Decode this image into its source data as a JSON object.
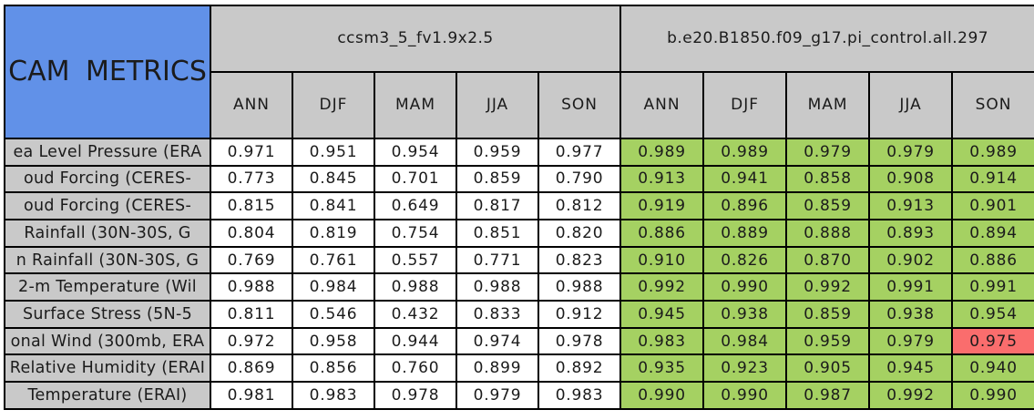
{
  "colors": {
    "title_bg": "#6191e8",
    "header_bg": "#c9c9c9",
    "label_bg": "#c9c9c9",
    "group1_cell_bg": "#ffffff",
    "group2_cell_bg": "#a5d162",
    "highlight_cell_bg": "#fa6d6d",
    "border": "#000000",
    "text": "#1b1b1b"
  },
  "chart_data": {
    "type": "table",
    "title": "CAM METRICS",
    "column_groups": [
      {
        "label": "ccsm3_5_fv1.9x2.5",
        "columns": [
          "ANN",
          "DJF",
          "MAM",
          "JJA",
          "SON"
        ]
      },
      {
        "label": "b.e20.B1850.f09_g17.pi_control.all.297",
        "columns": [
          "ANN",
          "DJF",
          "MAM",
          "JJA",
          "SON"
        ]
      }
    ],
    "rows": [
      {
        "label": "ea Level Pressure (ERA",
        "group1": [
          "0.971",
          "0.951",
          "0.954",
          "0.959",
          "0.977"
        ],
        "group2": [
          "0.989",
          "0.989",
          "0.979",
          "0.979",
          "0.989"
        ]
      },
      {
        "label": "oud Forcing (CERES-",
        "group1": [
          "0.773",
          "0.845",
          "0.701",
          "0.859",
          "0.790"
        ],
        "group2": [
          "0.913",
          "0.941",
          "0.858",
          "0.908",
          "0.914"
        ]
      },
      {
        "label": "oud Forcing (CERES-",
        "group1": [
          "0.815",
          "0.841",
          "0.649",
          "0.817",
          "0.812"
        ],
        "group2": [
          "0.919",
          "0.896",
          "0.859",
          "0.913",
          "0.901"
        ]
      },
      {
        "label": "Rainfall (30N-30S, G",
        "group1": [
          "0.804",
          "0.819",
          "0.754",
          "0.851",
          "0.820"
        ],
        "group2": [
          "0.886",
          "0.889",
          "0.888",
          "0.893",
          "0.894"
        ]
      },
      {
        "label": "n Rainfall (30N-30S, G",
        "group1": [
          "0.769",
          "0.761",
          "0.557",
          "0.771",
          "0.823"
        ],
        "group2": [
          "0.910",
          "0.826",
          "0.870",
          "0.902",
          "0.886"
        ]
      },
      {
        "label": "2-m Temperature (Wil",
        "group1": [
          "0.988",
          "0.984",
          "0.988",
          "0.988",
          "0.988"
        ],
        "group2": [
          "0.992",
          "0.990",
          "0.992",
          "0.991",
          "0.991"
        ]
      },
      {
        "label": "Surface Stress (5N-5",
        "group1": [
          "0.811",
          "0.546",
          "0.432",
          "0.833",
          "0.912"
        ],
        "group2": [
          "0.945",
          "0.938",
          "0.859",
          "0.938",
          "0.954"
        ]
      },
      {
        "label": "onal Wind (300mb, ERA",
        "group1": [
          "0.972",
          "0.958",
          "0.944",
          "0.974",
          "0.978"
        ],
        "group2": [
          "0.983",
          "0.984",
          "0.959",
          "0.979",
          "0.975"
        ],
        "highlight": {
          "group": 2,
          "col": 4
        }
      },
      {
        "label": "Relative Humidity (ERAI",
        "group1": [
          "0.869",
          "0.856",
          "0.760",
          "0.899",
          "0.892"
        ],
        "group2": [
          "0.935",
          "0.923",
          "0.905",
          "0.945",
          "0.940"
        ]
      },
      {
        "label": "Temperature (ERAI)",
        "group1": [
          "0.981",
          "0.983",
          "0.978",
          "0.979",
          "0.983"
        ],
        "group2": [
          "0.990",
          "0.990",
          "0.987",
          "0.992",
          "0.990"
        ]
      }
    ],
    "highlighted_cells": [
      {
        "row_label": "onal Wind (300mb, ERA",
        "group_label": "b.e20.B1850.f09_g17.pi_control.all.297",
        "column": "SON",
        "value": "0.975",
        "color": "#fa6d6d"
      }
    ],
    "layout": {
      "grid": true,
      "legend_position": "none"
    }
  }
}
